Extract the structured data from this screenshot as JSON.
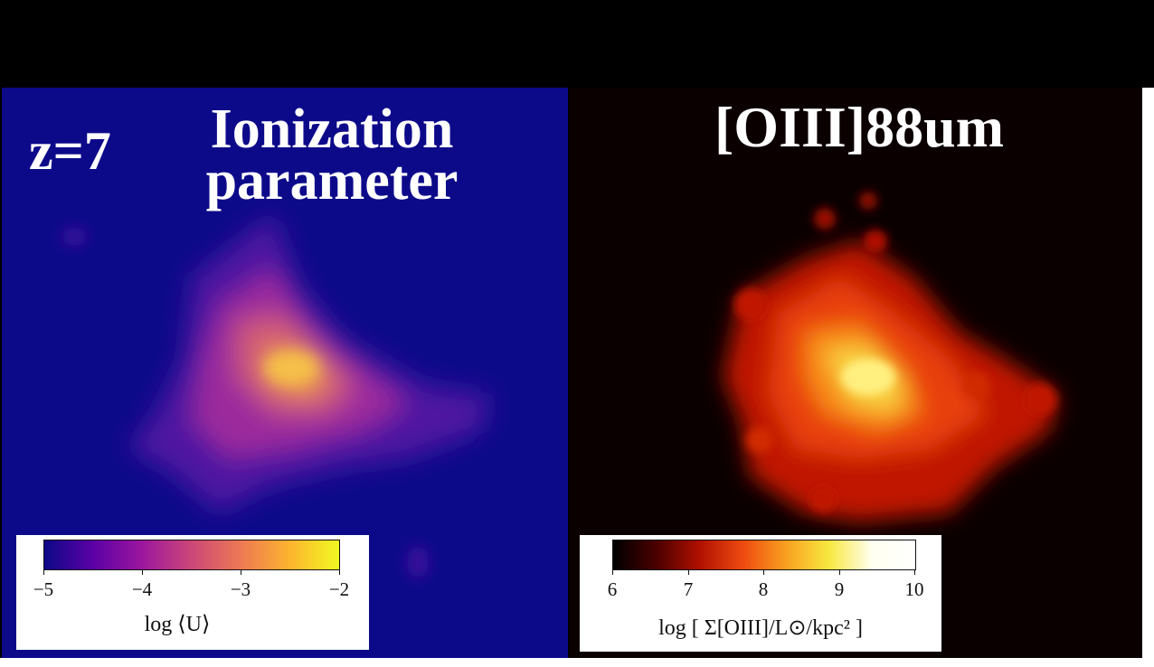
{
  "left_panel": {
    "redshift_label": "z=7",
    "title_line1": "Ionization",
    "title_line2": "parameter",
    "colorbar": {
      "colormap": "plasma",
      "ticks": [
        "−5",
        "−4",
        "−3",
        "−2"
      ],
      "label": "log ⟨U⟩"
    },
    "background_color": "#0d0a8a"
  },
  "right_panel": {
    "title": "[OIII]88um",
    "colorbar": {
      "colormap": "hot",
      "ticks": [
        "6",
        "7",
        "8",
        "9",
        "10"
      ],
      "label": "log [ Σ[OIII]/L⊙/kpc² ]"
    },
    "background_color": "#0b0000"
  }
}
